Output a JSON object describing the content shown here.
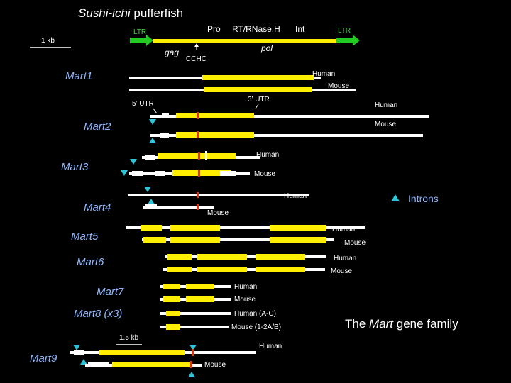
{
  "title": {
    "italic_part": "Sushi-ichi",
    "rest": " pufferfish"
  },
  "scale_bars": {
    "top": "1 kb",
    "bottom": "1.5 kb"
  },
  "element_labels": {
    "ltr_left": "LTR",
    "ltr_right": "LTR",
    "pro": "Pro",
    "rt_rnaseh": "RT/RNase.H",
    "int": "Int",
    "gag": "gag",
    "pol": "pol",
    "cchc": "CCHC",
    "utr5": "5’ UTR",
    "utr3": "3’ UTR"
  },
  "genes": [
    {
      "name": "Mart1"
    },
    {
      "name": "Mart2"
    },
    {
      "name": "Mart3"
    },
    {
      "name": "Mart4"
    },
    {
      "name": "Mart5"
    },
    {
      "name": "Mart6"
    },
    {
      "name": "Mart7"
    },
    {
      "name": "Mart8 (x3)"
    },
    {
      "name": "Mart9"
    }
  ],
  "species_labels": {
    "mart1_human": "Human",
    "mart1_mouse": "Mouse",
    "mart2_human": "Human",
    "mart2_mouse": "Mouse",
    "mart3_human": "Human",
    "mart3_mouse": "Mouse",
    "mart4_human": "Human",
    "mart4_mouse": "Mouse",
    "mart5_human": "Human",
    "mart5_mouse": "Mouse",
    "mart6_human": "Human",
    "mart6_mouse": "Mouse",
    "mart7_human": "Human",
    "mart7_mouse": "Mouse",
    "mart8_human": "Human (A-C)",
    "mart8_mouse": "Mouse (1-2A/B)",
    "mart9_human": "Human",
    "mart9_mouse": "Mouse"
  },
  "legend": {
    "introns": "Introns"
  },
  "footer": {
    "prefix": "The ",
    "italic": "Mart",
    "suffix": " gene family"
  },
  "colors": {
    "background": "#000000",
    "exon": "#ffee00",
    "utr": "#ffffff",
    "intron_marker": "#2ec4d6",
    "ltr_arrow": "#22cc22",
    "motif": "#dd3311",
    "gene_label": "#8fb8ff"
  }
}
